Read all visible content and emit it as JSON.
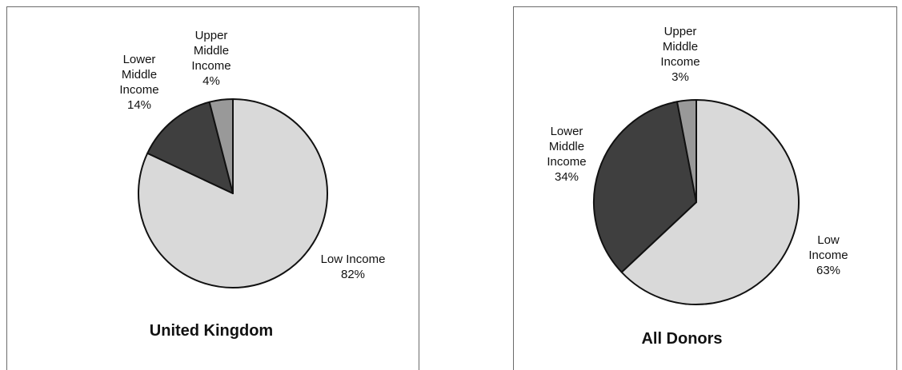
{
  "chart_data": [
    {
      "type": "pie",
      "title": "United Kingdom",
      "slices": [
        {
          "label": "Low Income",
          "value": 82,
          "value_label": "82%",
          "color": "#d9d9d9"
        },
        {
          "label": "Lower Middle Income",
          "value": 14,
          "value_label": "14%",
          "color": "#3f3f3f"
        },
        {
          "label": "Upper Middle Income",
          "value": 4,
          "value_label": "4%",
          "color": "#999999"
        }
      ]
    },
    {
      "type": "pie",
      "title": "All Donors",
      "slices": [
        {
          "label": "Low Income",
          "value": 63,
          "value_label": "63%",
          "color": "#d9d9d9"
        },
        {
          "label": "Lower Middle Income",
          "value": 34,
          "value_label": "34%",
          "color": "#3f3f3f"
        },
        {
          "label": "Upper Middle Income",
          "value": 3,
          "value_label": "3%",
          "color": "#999999"
        }
      ]
    }
  ]
}
